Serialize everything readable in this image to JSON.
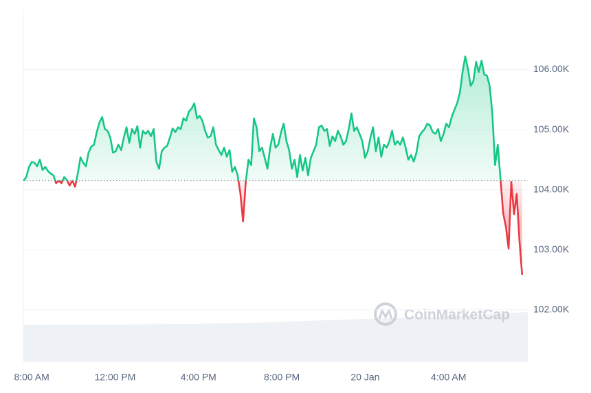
{
  "chart_data": {
    "type": "line",
    "watermark": "CoinMarketCap",
    "baseline": 104150,
    "color_up": "#16c784",
    "color_down": "#ea3943",
    "xlim": [
      -0.4,
      23.8
    ],
    "ylim": [
      101140,
      107000
    ],
    "xticks": [
      {
        "value": 0,
        "label": "8:00 AM"
      },
      {
        "value": 4,
        "label": "12:00 PM"
      },
      {
        "value": 8,
        "label": "4:00 PM"
      },
      {
        "value": 12,
        "label": "8:00 PM"
      },
      {
        "value": 16,
        "label": "20 Jan"
      },
      {
        "value": 20,
        "label": "4:00 AM"
      }
    ],
    "yticks": [
      {
        "value": 102000,
        "label": "102.00K"
      },
      {
        "value": 103000,
        "label": "103.00K"
      },
      {
        "value": 104000,
        "label": "104.00K"
      },
      {
        "value": 105000,
        "label": "105.00K"
      },
      {
        "value": 106000,
        "label": "106.00K"
      }
    ],
    "grid": true,
    "x": [
      -0.39,
      -0.26,
      -0.13,
      0,
      0.13,
      0.26,
      0.39,
      0.52,
      0.65,
      0.78,
      0.91,
      1.04,
      1.17,
      1.3,
      1.43,
      1.56,
      1.69,
      1.82,
      1.95,
      2.08,
      2.21,
      2.34,
      2.47,
      2.6,
      2.73,
      2.86,
      2.99,
      3.12,
      3.25,
      3.38,
      3.51,
      3.64,
      3.77,
      3.9,
      4.03,
      4.16,
      4.29,
      4.42,
      4.55,
      4.68,
      4.81,
      4.94,
      5.07,
      5.2,
      5.33,
      5.46,
      5.59,
      5.72,
      5.85,
      5.98,
      6.11,
      6.24,
      6.37,
      6.5,
      6.63,
      6.76,
      6.89,
      7.02,
      7.15,
      7.28,
      7.41,
      7.54,
      7.67,
      7.8,
      7.93,
      8.06,
      8.19,
      8.32,
      8.45,
      8.58,
      8.71,
      8.84,
      8.97,
      9.1,
      9.23,
      9.36,
      9.49,
      9.62,
      9.75,
      9.88,
      10.01,
      10.14,
      10.27,
      10.4,
      10.53,
      10.66,
      10.79,
      10.92,
      11.05,
      11.18,
      11.31,
      11.44,
      11.57,
      11.7,
      11.83,
      11.96,
      12.09,
      12.22,
      12.35,
      12.48,
      12.61,
      12.74,
      12.87,
      13,
      13.13,
      13.26,
      13.39,
      13.52,
      13.65,
      13.78,
      13.91,
      14.04,
      14.17,
      14.3,
      14.43,
      14.56,
      14.69,
      14.82,
      14.95,
      15.08,
      15.21,
      15.34,
      15.47,
      15.6,
      15.73,
      15.86,
      15.99,
      16.12,
      16.25,
      16.38,
      16.51,
      16.64,
      16.77,
      16.9,
      17.03,
      17.16,
      17.29,
      17.42,
      17.55,
      17.68,
      17.81,
      17.94,
      18.07,
      18.2,
      18.33,
      18.46,
      18.59,
      18.72,
      18.85,
      18.98,
      19.11,
      19.24,
      19.37,
      19.5,
      19.63,
      19.76,
      19.89,
      20.02,
      20.15,
      20.28,
      20.41,
      20.54,
      20.67,
      20.8,
      20.93,
      21.06,
      21.19,
      21.32,
      21.45,
      21.58,
      21.71,
      21.84,
      21.97,
      22.1,
      22.23,
      22.36,
      22.49,
      22.62,
      22.75,
      22.88,
      23.01,
      23.14,
      23.27,
      23.4,
      23.53
    ],
    "values": [
      104150,
      104210,
      104380,
      104460,
      104450,
      104390,
      104500,
      104330,
      104380,
      104310,
      104270,
      104240,
      104110,
      104150,
      104110,
      104210,
      104160,
      104070,
      104150,
      104050,
      104270,
      104540,
      104450,
      104390,
      104620,
      104720,
      104750,
      104960,
      105120,
      105210,
      105010,
      104980,
      104870,
      104620,
      104640,
      104750,
      104660,
      104870,
      105040,
      104780,
      105010,
      104930,
      105060,
      104700,
      104980,
      104930,
      104980,
      104890,
      105010,
      104470,
      104350,
      104640,
      104700,
      104730,
      104870,
      105020,
      104960,
      105040,
      105010,
      105190,
      105150,
      105300,
      105350,
      105440,
      105190,
      105230,
      105150,
      104980,
      104870,
      104890,
      105040,
      104750,
      104660,
      104580,
      104700,
      104550,
      104660,
      104300,
      104380,
      104240,
      103950,
      103470,
      104130,
      104500,
      104410,
      105190,
      105040,
      104640,
      104700,
      104530,
      104350,
      104700,
      104930,
      104700,
      104750,
      104950,
      105100,
      104810,
      104660,
      104350,
      104500,
      104210,
      104580,
      104320,
      104530,
      104240,
      104530,
      104640,
      104750,
      105040,
      105070,
      104980,
      105010,
      104730,
      104890,
      104810,
      104980,
      104890,
      104750,
      104810,
      105010,
      105270,
      104980,
      105040,
      104930,
      104810,
      104530,
      104640,
      104870,
      105040,
      104640,
      104870,
      104550,
      104750,
      104700,
      104810,
      104980,
      104750,
      104810,
      104750,
      104870,
      104700,
      104500,
      104580,
      104470,
      104620,
      104890,
      104960,
      105010,
      105100,
      105070,
      104960,
      104930,
      105010,
      104810,
      104930,
      105100,
      105040,
      105210,
      105330,
      105440,
      105610,
      105960,
      106220,
      106010,
      105730,
      105810,
      106130,
      105960,
      106150,
      105920,
      105900,
      105730,
      105270,
      104410,
      104750,
      104180,
      103610,
      103380,
      103020,
      104130,
      103590,
      103930,
      103150,
      102580
    ]
  }
}
